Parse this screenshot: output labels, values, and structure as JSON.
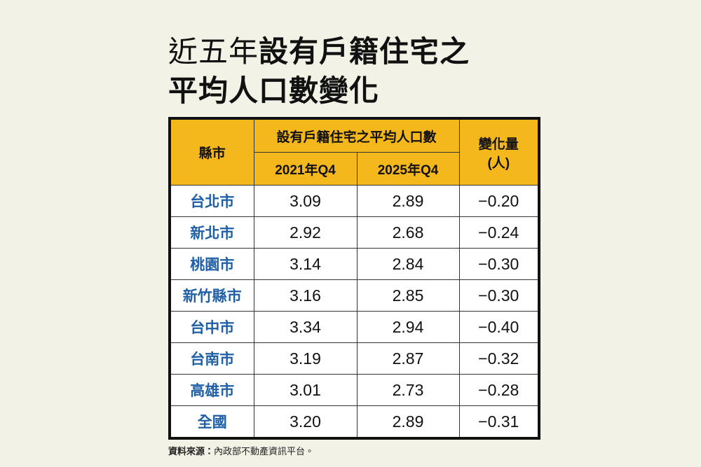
{
  "header": {
    "title_light": "近五年",
    "title_bold": "設有戶籍住宅之",
    "title_line2": "平均人口數變化"
  },
  "table": {
    "columns": {
      "city": "縣市",
      "group": "設有戶籍住宅之平均人口數",
      "y2021": "2021年Q4",
      "y2025": "2025年Q4",
      "change": "變化量",
      "change_unit": "(人)"
    },
    "rows": [
      [
        "台北市",
        "3.09",
        "2.89",
        "−0.20"
      ],
      [
        "新北市",
        "2.92",
        "2.68",
        "−0.24"
      ],
      [
        "桃園市",
        "3.14",
        "2.84",
        "−0.30"
      ],
      [
        "新竹縣市",
        "3.16",
        "2.85",
        "−0.30"
      ],
      [
        "台中市",
        "3.34",
        "2.94",
        "−0.40"
      ],
      [
        "台南市",
        "3.19",
        "2.87",
        "−0.32"
      ],
      [
        "高雄市",
        "3.01",
        "2.73",
        "−0.28"
      ],
      [
        "全國",
        "3.20",
        "2.89",
        "−0.31"
      ]
    ]
  },
  "footer": {
    "source_label": "資料來源：",
    "source": "內政部不動產資訊平台。"
  }
}
